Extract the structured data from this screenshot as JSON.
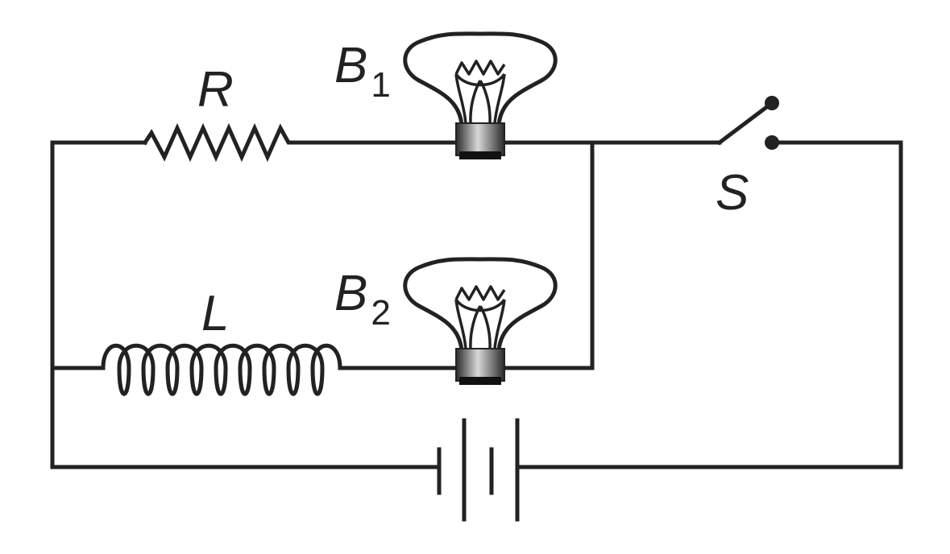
{
  "labels": {
    "resistor": "R",
    "inductor": "L",
    "switch": "S",
    "bulb1_letter": "B",
    "bulb1_sub": "1",
    "bulb2_letter": "B",
    "bulb2_sub": "2"
  },
  "colors": {
    "line": "#222222",
    "background": "#ffffff"
  },
  "switch_state": "open"
}
